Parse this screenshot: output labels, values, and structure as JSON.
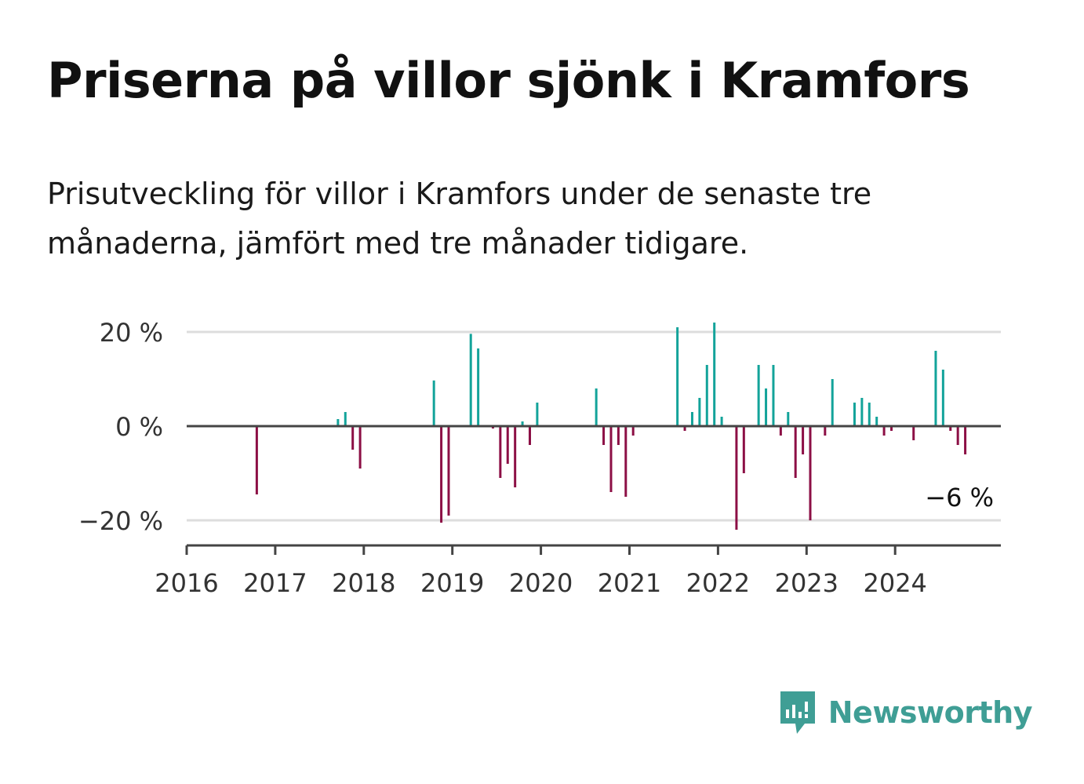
{
  "title": "Priserna på villor sjönk i Kramfors",
  "subtitle": "Prisutveckling för villor i Kramfors under de senaste tre månaderna, jämfört med tre månader tidigare.",
  "brand": {
    "name": "Newsworthy",
    "color": "#3f9e95"
  },
  "colors": {
    "positive": "#13a39a",
    "negative": "#8c0f45",
    "zero_line": "#444444",
    "grid": "#dddddd"
  },
  "chart_data": {
    "type": "bar",
    "x_unit": "month",
    "x_start": "2016-01",
    "x_end": "2024-12",
    "xticks": [
      "2016",
      "2017",
      "2018",
      "2019",
      "2020",
      "2021",
      "2022",
      "2023",
      "2024"
    ],
    "yticks": [
      {
        "value": 20,
        "label": "20 %"
      },
      {
        "value": 0,
        "label": "0 %"
      },
      {
        "value": -20,
        "label": "−20 %"
      }
    ],
    "ylim": [
      -25,
      22
    ],
    "end_label": "−6 %",
    "points": [
      {
        "x": "2016-10",
        "y": -14.5
      },
      {
        "x": "2017-09",
        "y": 1.5
      },
      {
        "x": "2017-10",
        "y": 3
      },
      {
        "x": "2017-11",
        "y": -5
      },
      {
        "x": "2017-12",
        "y": -9
      },
      {
        "x": "2018-10",
        "y": 9.7
      },
      {
        "x": "2018-11",
        "y": -20.5
      },
      {
        "x": "2018-12",
        "y": -19
      },
      {
        "x": "2019-03",
        "y": 19.6
      },
      {
        "x": "2019-04",
        "y": 16.5
      },
      {
        "x": "2019-06",
        "y": -0.5
      },
      {
        "x": "2019-07",
        "y": -11
      },
      {
        "x": "2019-08",
        "y": -8
      },
      {
        "x": "2019-09",
        "y": -13
      },
      {
        "x": "2019-10",
        "y": 1
      },
      {
        "x": "2019-11",
        "y": -4
      },
      {
        "x": "2019-12",
        "y": 5
      },
      {
        "x": "2020-08",
        "y": 8
      },
      {
        "x": "2020-09",
        "y": -4
      },
      {
        "x": "2020-10",
        "y": -14
      },
      {
        "x": "2020-11",
        "y": -4
      },
      {
        "x": "2020-12",
        "y": -15
      },
      {
        "x": "2021-01",
        "y": -2
      },
      {
        "x": "2021-07",
        "y": 21
      },
      {
        "x": "2021-08",
        "y": -1
      },
      {
        "x": "2021-09",
        "y": 3
      },
      {
        "x": "2021-10",
        "y": 6
      },
      {
        "x": "2021-11",
        "y": 13
      },
      {
        "x": "2021-12",
        "y": 22
      },
      {
        "x": "2022-01",
        "y": 2
      },
      {
        "x": "2022-03",
        "y": -22
      },
      {
        "x": "2022-04",
        "y": -10
      },
      {
        "x": "2022-06",
        "y": 13
      },
      {
        "x": "2022-07",
        "y": 8
      },
      {
        "x": "2022-08",
        "y": 13
      },
      {
        "x": "2022-09",
        "y": -2
      },
      {
        "x": "2022-10",
        "y": 3
      },
      {
        "x": "2022-11",
        "y": -11
      },
      {
        "x": "2022-12",
        "y": -6
      },
      {
        "x": "2023-01",
        "y": -20
      },
      {
        "x": "2023-03",
        "y": -2
      },
      {
        "x": "2023-04",
        "y": 10
      },
      {
        "x": "2023-07",
        "y": 5
      },
      {
        "x": "2023-08",
        "y": 6
      },
      {
        "x": "2023-09",
        "y": 5
      },
      {
        "x": "2023-10",
        "y": 2
      },
      {
        "x": "2023-11",
        "y": -2
      },
      {
        "x": "2023-12",
        "y": -1
      },
      {
        "x": "2024-03",
        "y": -3
      },
      {
        "x": "2024-06",
        "y": 16
      },
      {
        "x": "2024-07",
        "y": 12
      },
      {
        "x": "2024-08",
        "y": -1
      },
      {
        "x": "2024-09",
        "y": -4
      },
      {
        "x": "2024-10",
        "y": -6
      }
    ]
  }
}
